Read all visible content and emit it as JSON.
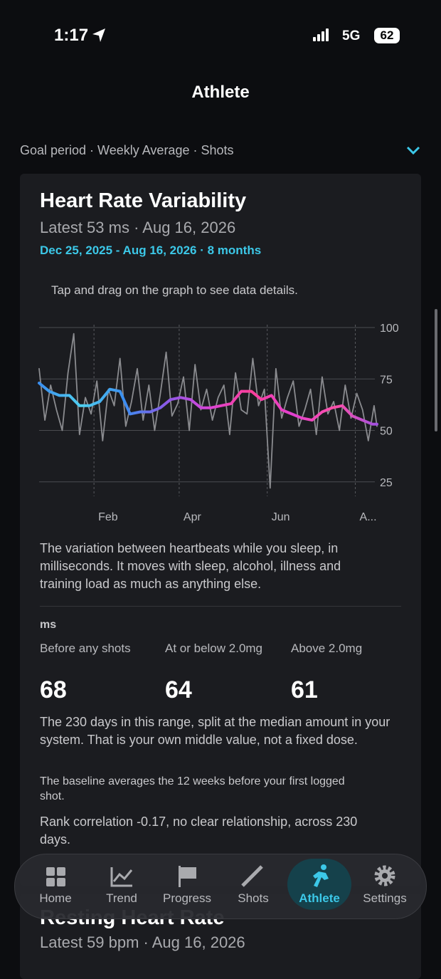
{
  "status_bar": {
    "time": "1:17",
    "network": "5G",
    "battery": "62"
  },
  "header": {
    "title": "Athlete"
  },
  "filter": {
    "label": "Goal period · Weekly Average · Shots"
  },
  "card": {
    "title": "Heart Rate Variability",
    "latest": "Latest 53 ms · Aug 16, 2026",
    "range": "Dec 25, 2025 - Aug 16, 2026 · 8 months",
    "hint": "Tap and drag on the graph to see data details.",
    "description": "The variation between heartbeats while you sleep, in milliseconds. It moves with sleep, alcohol, illness and training load as much as anything else.",
    "unit": "ms",
    "columns": [
      {
        "label": "Before any shots",
        "value": "68"
      },
      {
        "label": "At or below 2.0mg",
        "value": "64"
      },
      {
        "label": "Above 2.0mg",
        "value": "61"
      }
    ],
    "notes": [
      "The 230 days in this range, split at the median amount in your system. That is your own middle value, not a fixed dose.",
      "The baseline averages the 12 weeks before your first logged shot.",
      "Rank correlation -0.17, no clear relationship, across 230 days."
    ]
  },
  "chart_data": {
    "type": "line",
    "xlim": [
      "2025-12-25",
      "2026-08-16"
    ],
    "xticks": [
      {
        "value": "2026-02-01",
        "label": "Feb"
      },
      {
        "value": "2026-04-01",
        "label": "Apr"
      },
      {
        "value": "2026-06-01",
        "label": "Jun"
      },
      {
        "value": "2026-08-01",
        "label": "A..."
      }
    ],
    "ylim": [
      18,
      100
    ],
    "yticks": [
      25,
      50,
      75,
      100
    ],
    "grid": true,
    "series": [
      {
        "color": "#8a8b8f",
        "x": [
          "2025-12-25",
          "2025-12-29",
          "2026-01-02",
          "2026-01-06",
          "2026-01-10",
          "2026-01-14",
          "2026-01-18",
          "2026-01-22",
          "2026-01-26",
          "2026-01-30",
          "2026-02-03",
          "2026-02-07",
          "2026-02-11",
          "2026-02-15",
          "2026-02-19",
          "2026-02-23",
          "2026-02-27",
          "2026-03-03",
          "2026-03-07",
          "2026-03-11",
          "2026-03-15",
          "2026-03-19",
          "2026-03-23",
          "2026-03-27",
          "2026-03-31",
          "2026-04-04",
          "2026-04-08",
          "2026-04-12",
          "2026-04-16",
          "2026-04-20",
          "2026-04-24",
          "2026-04-28",
          "2026-05-02",
          "2026-05-06",
          "2026-05-10",
          "2026-05-14",
          "2026-05-18",
          "2026-05-22",
          "2026-05-26",
          "2026-05-30",
          "2026-06-03",
          "2026-06-07",
          "2026-06-11",
          "2026-06-15",
          "2026-06-19",
          "2026-06-23",
          "2026-06-27",
          "2026-07-01",
          "2026-07-05",
          "2026-07-09",
          "2026-07-13",
          "2026-07-17",
          "2026-07-21",
          "2026-07-25",
          "2026-07-29",
          "2026-08-02",
          "2026-08-06",
          "2026-08-10",
          "2026-08-14",
          "2026-08-16"
        ],
        "values": [
          80,
          55,
          72,
          60,
          50,
          78,
          97,
          48,
          66,
          58,
          74,
          45,
          70,
          62,
          85,
          52,
          64,
          80,
          55,
          72,
          50,
          68,
          88,
          57,
          63,
          76,
          50,
          82,
          60,
          70,
          55,
          66,
          72,
          48,
          78,
          60,
          58,
          85,
          62,
          70,
          22,
          80,
          56,
          66,
          74,
          52,
          60,
          70,
          48,
          76,
          58,
          64,
          50,
          72,
          56,
          68,
          60,
          45,
          62,
          52
        ]
      },
      {
        "colors": [
          "#3a8ef0",
          "#4fd0f0",
          "#3a8ef0",
          "#8a5ae8",
          "#d844d8",
          "#ff3f9a",
          "#e040d0",
          "#ff4fa8",
          "#a050e0"
        ],
        "x": [
          "2025-12-25",
          "2026-01-01",
          "2026-01-08",
          "2026-01-15",
          "2026-01-22",
          "2026-01-29",
          "2026-02-05",
          "2026-02-12",
          "2026-02-19",
          "2026-02-26",
          "2026-03-05",
          "2026-03-12",
          "2026-03-19",
          "2026-03-26",
          "2026-04-02",
          "2026-04-09",
          "2026-04-16",
          "2026-04-23",
          "2026-04-30",
          "2026-05-07",
          "2026-05-14",
          "2026-05-21",
          "2026-05-28",
          "2026-06-04",
          "2026-06-11",
          "2026-06-18",
          "2026-06-25",
          "2026-07-02",
          "2026-07-09",
          "2026-07-16",
          "2026-07-23",
          "2026-07-30",
          "2026-08-06",
          "2026-08-13",
          "2026-08-16"
        ],
        "values": [
          73,
          69,
          67,
          67,
          62,
          62,
          64,
          70,
          69,
          58,
          59,
          59,
          61,
          65,
          66,
          65,
          61,
          61,
          62,
          63,
          69,
          69,
          65,
          67,
          60,
          58,
          56,
          55,
          59,
          61,
          62,
          57,
          55,
          53,
          53
        ]
      }
    ]
  },
  "tabs": [
    "Home",
    "Trend",
    "Progress",
    "Shots",
    "Athlete",
    "Settings"
  ],
  "next_card": {
    "title": "Resting Heart Rate",
    "latest": "Latest 59 bpm · Aug 16, 2026"
  }
}
